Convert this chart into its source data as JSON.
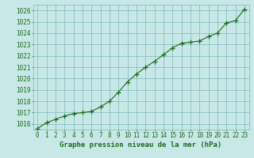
{
  "x": [
    0,
    1,
    2,
    3,
    4,
    5,
    6,
    7,
    8,
    9,
    10,
    11,
    12,
    13,
    14,
    15,
    16,
    17,
    18,
    19,
    20,
    21,
    22,
    23
  ],
  "y": [
    1015.6,
    1016.1,
    1016.4,
    1016.7,
    1016.9,
    1017.0,
    1017.1,
    1017.5,
    1018.0,
    1018.8,
    1019.7,
    1020.4,
    1021.0,
    1021.5,
    1022.1,
    1022.7,
    1023.1,
    1023.2,
    1023.3,
    1023.7,
    1024.0,
    1024.9,
    1025.1,
    1026.1
  ],
  "line_color": "#1a6b1a",
  "marker": "+",
  "marker_size": 4,
  "marker_color": "#1a6b1a",
  "bg_color": "#c8e8e8",
  "grid_color": "#7ab8b8",
  "xlabel": "Graphe pression niveau de la mer (hPa)",
  "xlabel_color": "#1a6b1a",
  "tick_color": "#1a6b1a",
  "ylim_min": 1015.5,
  "ylim_max": 1026.5,
  "yticks": [
    1016,
    1017,
    1018,
    1019,
    1020,
    1021,
    1022,
    1023,
    1024,
    1025,
    1026
  ],
  "xticks": [
    0,
    1,
    2,
    3,
    4,
    5,
    6,
    7,
    8,
    9,
    10,
    11,
    12,
    13,
    14,
    15,
    16,
    17,
    18,
    19,
    20,
    21,
    22,
    23
  ],
  "tick_fontsize": 5.5,
  "xlabel_fontsize": 6.5
}
